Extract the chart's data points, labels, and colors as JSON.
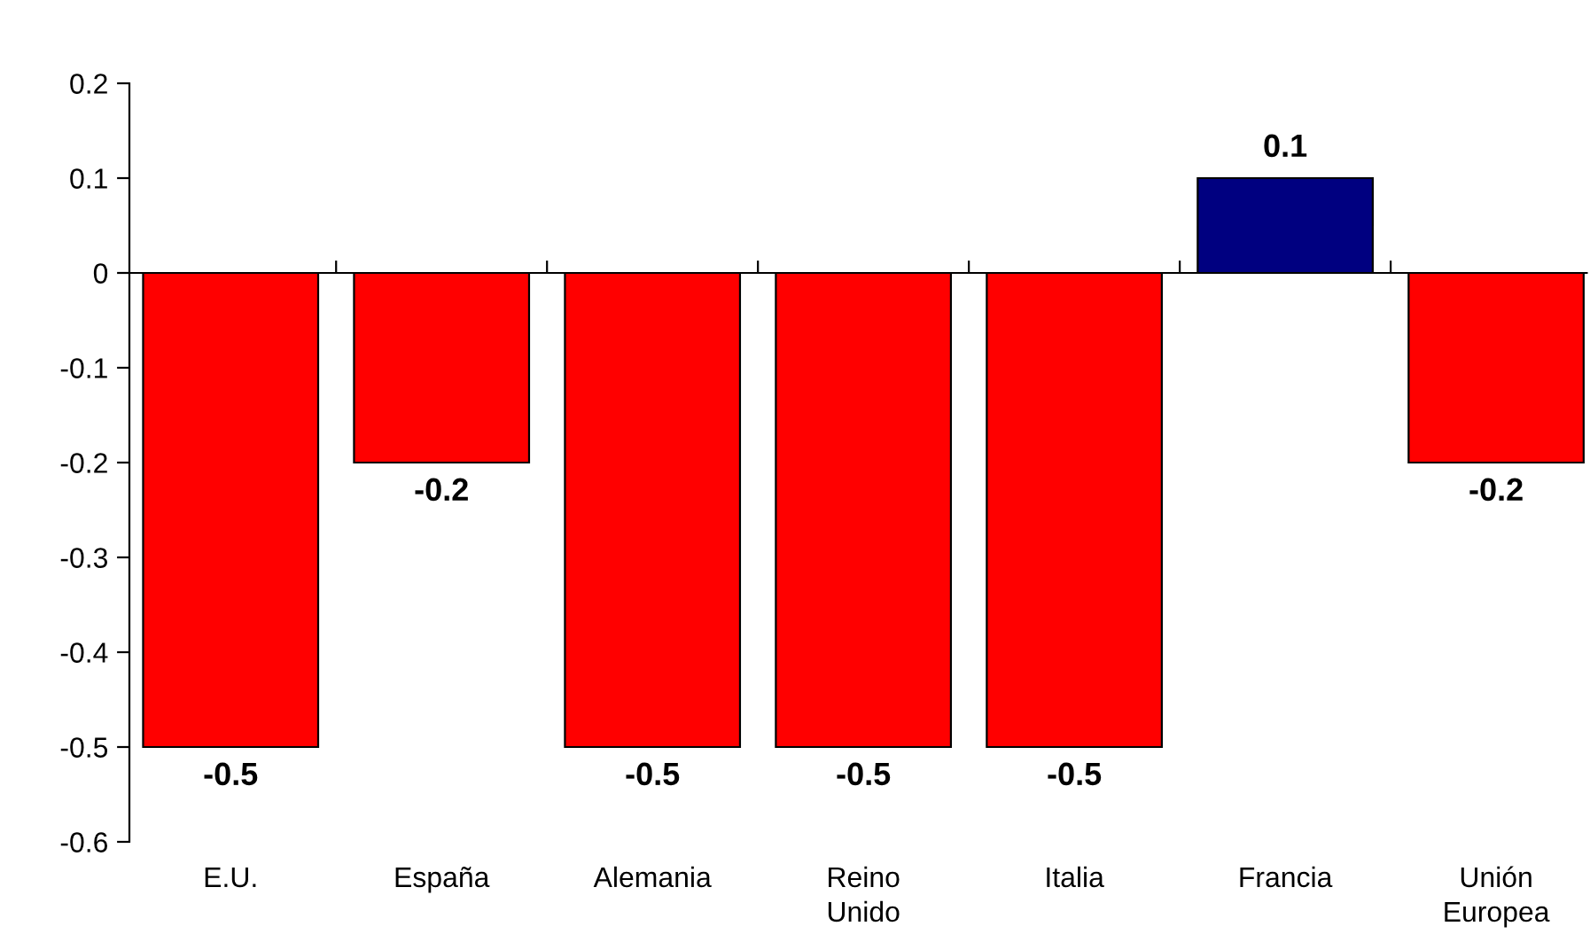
{
  "chart_data": {
    "type": "bar",
    "categories": [
      "E.U.",
      "España",
      "Alemania",
      "Reino\nUnido",
      "Italia",
      "Francia",
      "Unión\nEuropea"
    ],
    "values": [
      -0.5,
      -0.2,
      -0.5,
      -0.5,
      -0.5,
      0.1,
      -0.2
    ],
    "colors": [
      "#ff0000",
      "#ff0000",
      "#ff0000",
      "#ff0000",
      "#ff0000",
      "#000080",
      "#ff0000"
    ],
    "ylim": [
      -0.6,
      0.2
    ],
    "yticks": [
      -0.6,
      -0.5,
      -0.4,
      -0.3,
      -0.2,
      -0.1,
      0,
      0.1,
      0.2
    ],
    "data_labels": true,
    "legend": false
  }
}
